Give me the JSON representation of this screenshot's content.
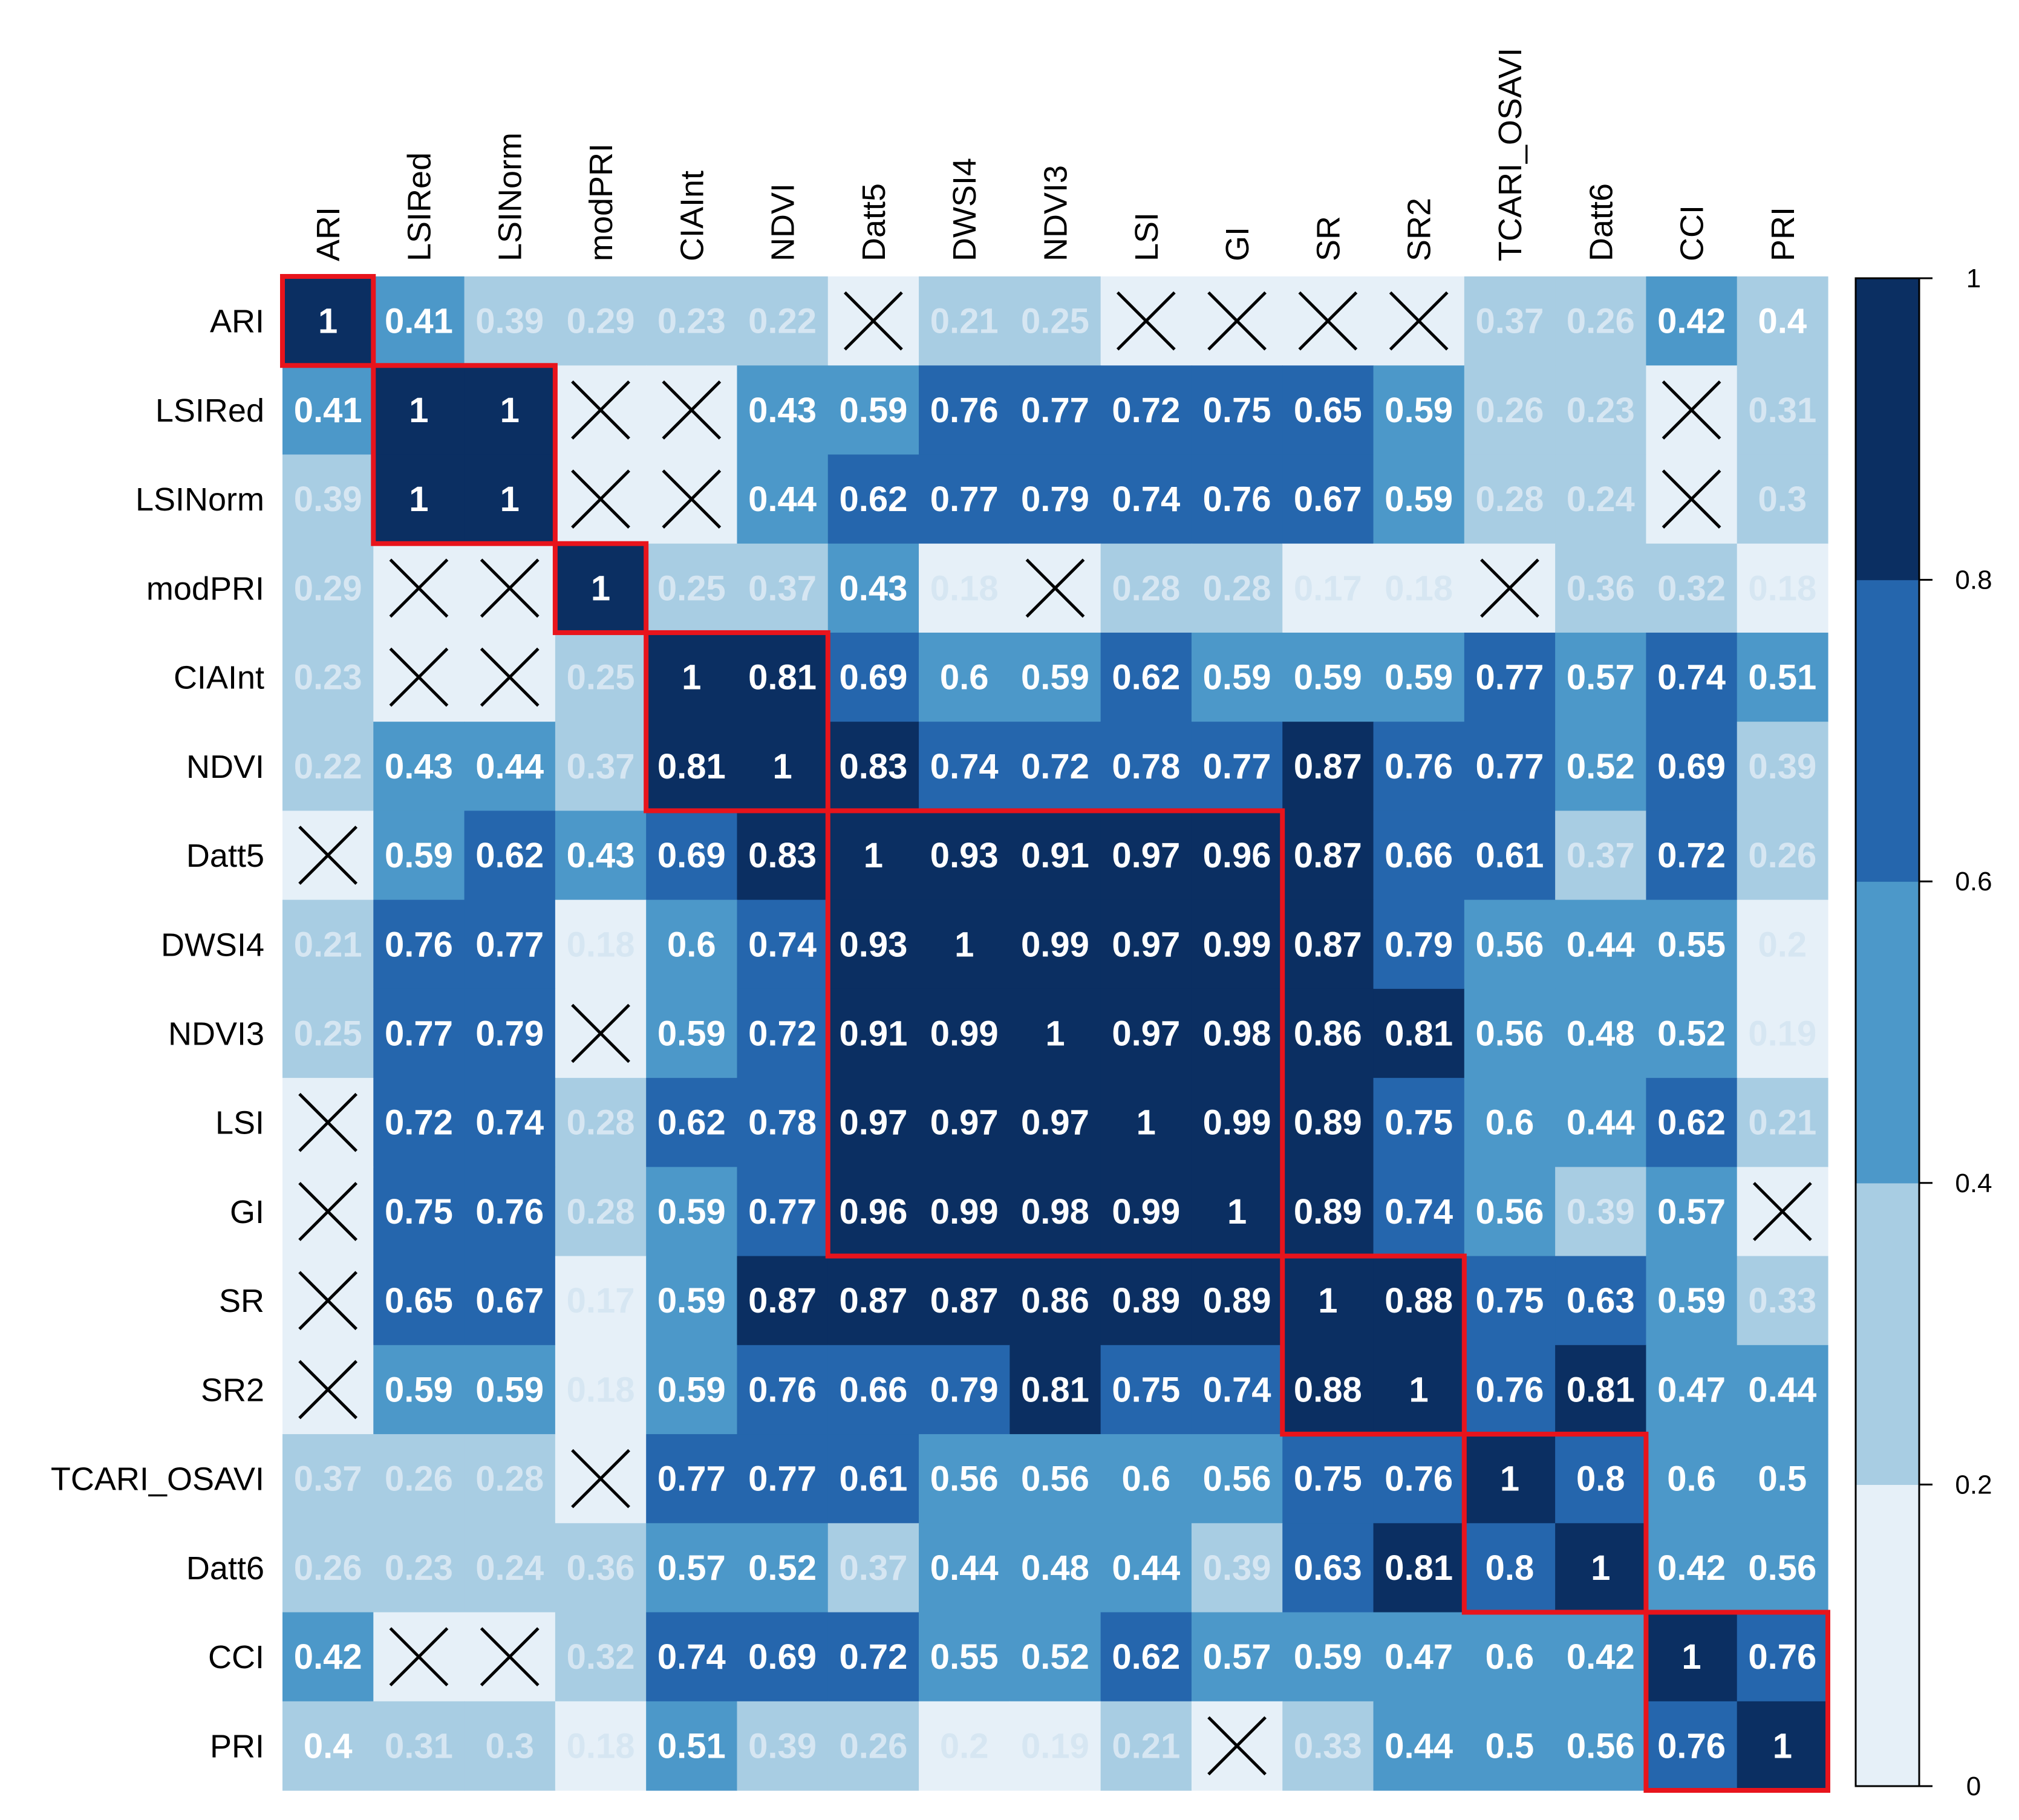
{
  "chart_data": {
    "type": "heatmap",
    "title": "",
    "xlabel": "",
    "ylabel": "",
    "variables": [
      "ARI",
      "LSIRed",
      "LSINorm",
      "modPRI",
      "CIAInt",
      "NDVI",
      "Datt5",
      "DWSI4",
      "NDVI3",
      "LSI",
      "GI",
      "SR",
      "SR2",
      "TCARI_OSAVI",
      "Datt6",
      "CCI",
      "PRI"
    ],
    "matrix": [
      [
        1,
        0.41,
        0.39,
        0.29,
        0.23,
        0.22,
        null,
        0.21,
        0.25,
        null,
        null,
        null,
        null,
        0.37,
        0.26,
        0.42,
        0.4
      ],
      [
        0.41,
        1,
        1,
        null,
        null,
        0.43,
        0.59,
        0.76,
        0.77,
        0.72,
        0.75,
        0.65,
        0.59,
        0.26,
        0.23,
        null,
        0.31
      ],
      [
        0.39,
        1,
        1,
        null,
        null,
        0.44,
        0.62,
        0.77,
        0.79,
        0.74,
        0.76,
        0.67,
        0.59,
        0.28,
        0.24,
        null,
        0.3
      ],
      [
        0.29,
        null,
        null,
        1,
        0.25,
        0.37,
        0.43,
        0.18,
        null,
        0.28,
        0.28,
        0.17,
        0.18,
        null,
        0.36,
        0.32,
        0.18
      ],
      [
        0.23,
        null,
        null,
        0.25,
        1,
        0.81,
        0.69,
        0.6,
        0.59,
        0.62,
        0.59,
        0.59,
        0.59,
        0.77,
        0.57,
        0.74,
        0.51
      ],
      [
        0.22,
        0.43,
        0.44,
        0.37,
        0.81,
        1,
        0.83,
        0.74,
        0.72,
        0.78,
        0.77,
        0.87,
        0.76,
        0.77,
        0.52,
        0.69,
        0.39
      ],
      [
        null,
        0.59,
        0.62,
        0.43,
        0.69,
        0.83,
        1,
        0.93,
        0.91,
        0.97,
        0.96,
        0.87,
        0.66,
        0.61,
        0.37,
        0.72,
        0.26
      ],
      [
        0.21,
        0.76,
        0.77,
        0.18,
        0.6,
        0.74,
        0.93,
        1,
        0.99,
        0.97,
        0.99,
        0.87,
        0.79,
        0.56,
        0.44,
        0.55,
        0.2
      ],
      [
        0.25,
        0.77,
        0.79,
        null,
        0.59,
        0.72,
        0.91,
        0.99,
        1,
        0.97,
        0.98,
        0.86,
        0.81,
        0.56,
        0.48,
        0.52,
        0.19
      ],
      [
        null,
        0.72,
        0.74,
        0.28,
        0.62,
        0.78,
        0.97,
        0.97,
        0.97,
        1,
        0.99,
        0.89,
        0.75,
        0.6,
        0.44,
        0.62,
        0.21
      ],
      [
        null,
        0.75,
        0.76,
        0.28,
        0.59,
        0.77,
        0.96,
        0.99,
        0.98,
        0.99,
        1,
        0.89,
        0.74,
        0.56,
        0.39,
        0.57,
        null
      ],
      [
        null,
        0.65,
        0.67,
        0.17,
        0.59,
        0.87,
        0.87,
        0.87,
        0.86,
        0.89,
        0.89,
        1,
        0.88,
        0.75,
        0.63,
        0.59,
        0.33
      ],
      [
        null,
        0.59,
        0.59,
        0.18,
        0.59,
        0.76,
        0.66,
        0.79,
        0.81,
        0.75,
        0.74,
        0.88,
        1,
        0.76,
        0.81,
        0.47,
        0.44
      ],
      [
        0.37,
        0.26,
        0.28,
        null,
        0.77,
        0.77,
        0.61,
        0.56,
        0.56,
        0.6,
        0.56,
        0.75,
        0.76,
        1,
        0.8,
        0.6,
        0.5
      ],
      [
        0.26,
        0.23,
        0.24,
        0.36,
        0.57,
        0.52,
        0.37,
        0.44,
        0.48,
        0.44,
        0.39,
        0.63,
        0.81,
        0.8,
        1,
        0.42,
        0.56
      ],
      [
        0.42,
        null,
        null,
        0.32,
        0.74,
        0.69,
        0.72,
        0.55,
        0.52,
        0.62,
        0.57,
        0.59,
        0.47,
        0.6,
        0.42,
        1,
        0.76
      ],
      [
        0.4,
        0.31,
        0.3,
        0.18,
        0.51,
        0.39,
        0.26,
        0.2,
        0.19,
        0.21,
        null,
        0.33,
        0.44,
        0.5,
        0.56,
        0.76,
        1
      ]
    ],
    "crossed_cells_background": [
      [
        0,
        6,
        0.1
      ],
      [
        0,
        9,
        0.1
      ],
      [
        0,
        10,
        0.1
      ],
      [
        0,
        11,
        0.1
      ],
      [
        0,
        12,
        0.1
      ],
      [
        1,
        3,
        0.1
      ],
      [
        1,
        4,
        0.1
      ],
      [
        1,
        15,
        0.1
      ],
      [
        2,
        3,
        0.1
      ],
      [
        2,
        4,
        0.1
      ],
      [
        2,
        15,
        0.1
      ],
      [
        3,
        1,
        0.1
      ],
      [
        3,
        2,
        0.1
      ],
      [
        3,
        8,
        0.1
      ],
      [
        3,
        13,
        0.1
      ],
      [
        4,
        1,
        0.1
      ],
      [
        4,
        2,
        0.1
      ],
      [
        6,
        0,
        0.1
      ],
      [
        8,
        3,
        0.1
      ],
      [
        9,
        0,
        0.1
      ],
      [
        10,
        0,
        0.1
      ],
      [
        10,
        16,
        0.1
      ],
      [
        11,
        0,
        0.1
      ],
      [
        12,
        0,
        0.1
      ],
      [
        13,
        3,
        0.1
      ],
      [
        15,
        1,
        0.1
      ],
      [
        15,
        2,
        0.1
      ],
      [
        16,
        10,
        0.1
      ]
    ],
    "clusters": [
      [
        0,
        0
      ],
      [
        1,
        2
      ],
      [
        3,
        3
      ],
      [
        4,
        5
      ],
      [
        6,
        10
      ],
      [
        11,
        12
      ],
      [
        13,
        14
      ],
      [
        15,
        16
      ]
    ],
    "color_scale": {
      "breaks": [
        0,
        0.2,
        0.4,
        0.6,
        0.8,
        1
      ],
      "colors": [
        "#e6f0f8",
        "#a8cde3",
        "#4c98c9",
        "#2566ad",
        "#0b2f62"
      ],
      "ticks": [
        "0",
        "0.2",
        "0.4",
        "0.6",
        "0.8",
        "1"
      ]
    },
    "highlight_color": "#e8141c",
    "legend": "right"
  }
}
